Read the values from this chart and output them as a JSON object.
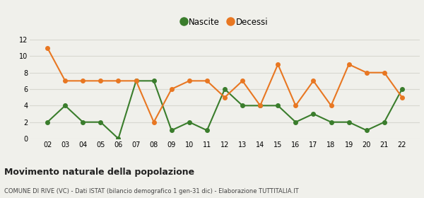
{
  "years": [
    "02",
    "03",
    "04",
    "05",
    "06",
    "07",
    "08",
    "09",
    "10",
    "11",
    "12",
    "13",
    "14",
    "15",
    "16",
    "17",
    "18",
    "19",
    "20",
    "21",
    "22"
  ],
  "nascite": [
    2,
    4,
    2,
    2,
    0,
    7,
    7,
    1,
    2,
    1,
    6,
    4,
    4,
    4,
    2,
    3,
    2,
    2,
    1,
    2,
    6
  ],
  "decessi": [
    11,
    7,
    7,
    7,
    7,
    7,
    2,
    6,
    7,
    7,
    5,
    7,
    4,
    9,
    4,
    7,
    4,
    9,
    8,
    8,
    5
  ],
  "nascite_color": "#3a7d2c",
  "decessi_color": "#e87722",
  "title": "Movimento naturale della popolazione",
  "subtitle": "COMUNE DI RIVE (VC) - Dati ISTAT (bilancio demografico 1 gen-31 dic) - Elaborazione TUTTITALIA.IT",
  "legend_nascite": "Nascite",
  "legend_decessi": "Decessi",
  "ylim": [
    0,
    12
  ],
  "yticks": [
    0,
    2,
    4,
    6,
    8,
    10,
    12
  ],
  "bg_color": "#f0f0eb",
  "plot_bg_color": "#f0f0eb",
  "grid_color": "#d8d8d0",
  "marker": "o",
  "markersize": 4,
  "linewidth": 1.5
}
